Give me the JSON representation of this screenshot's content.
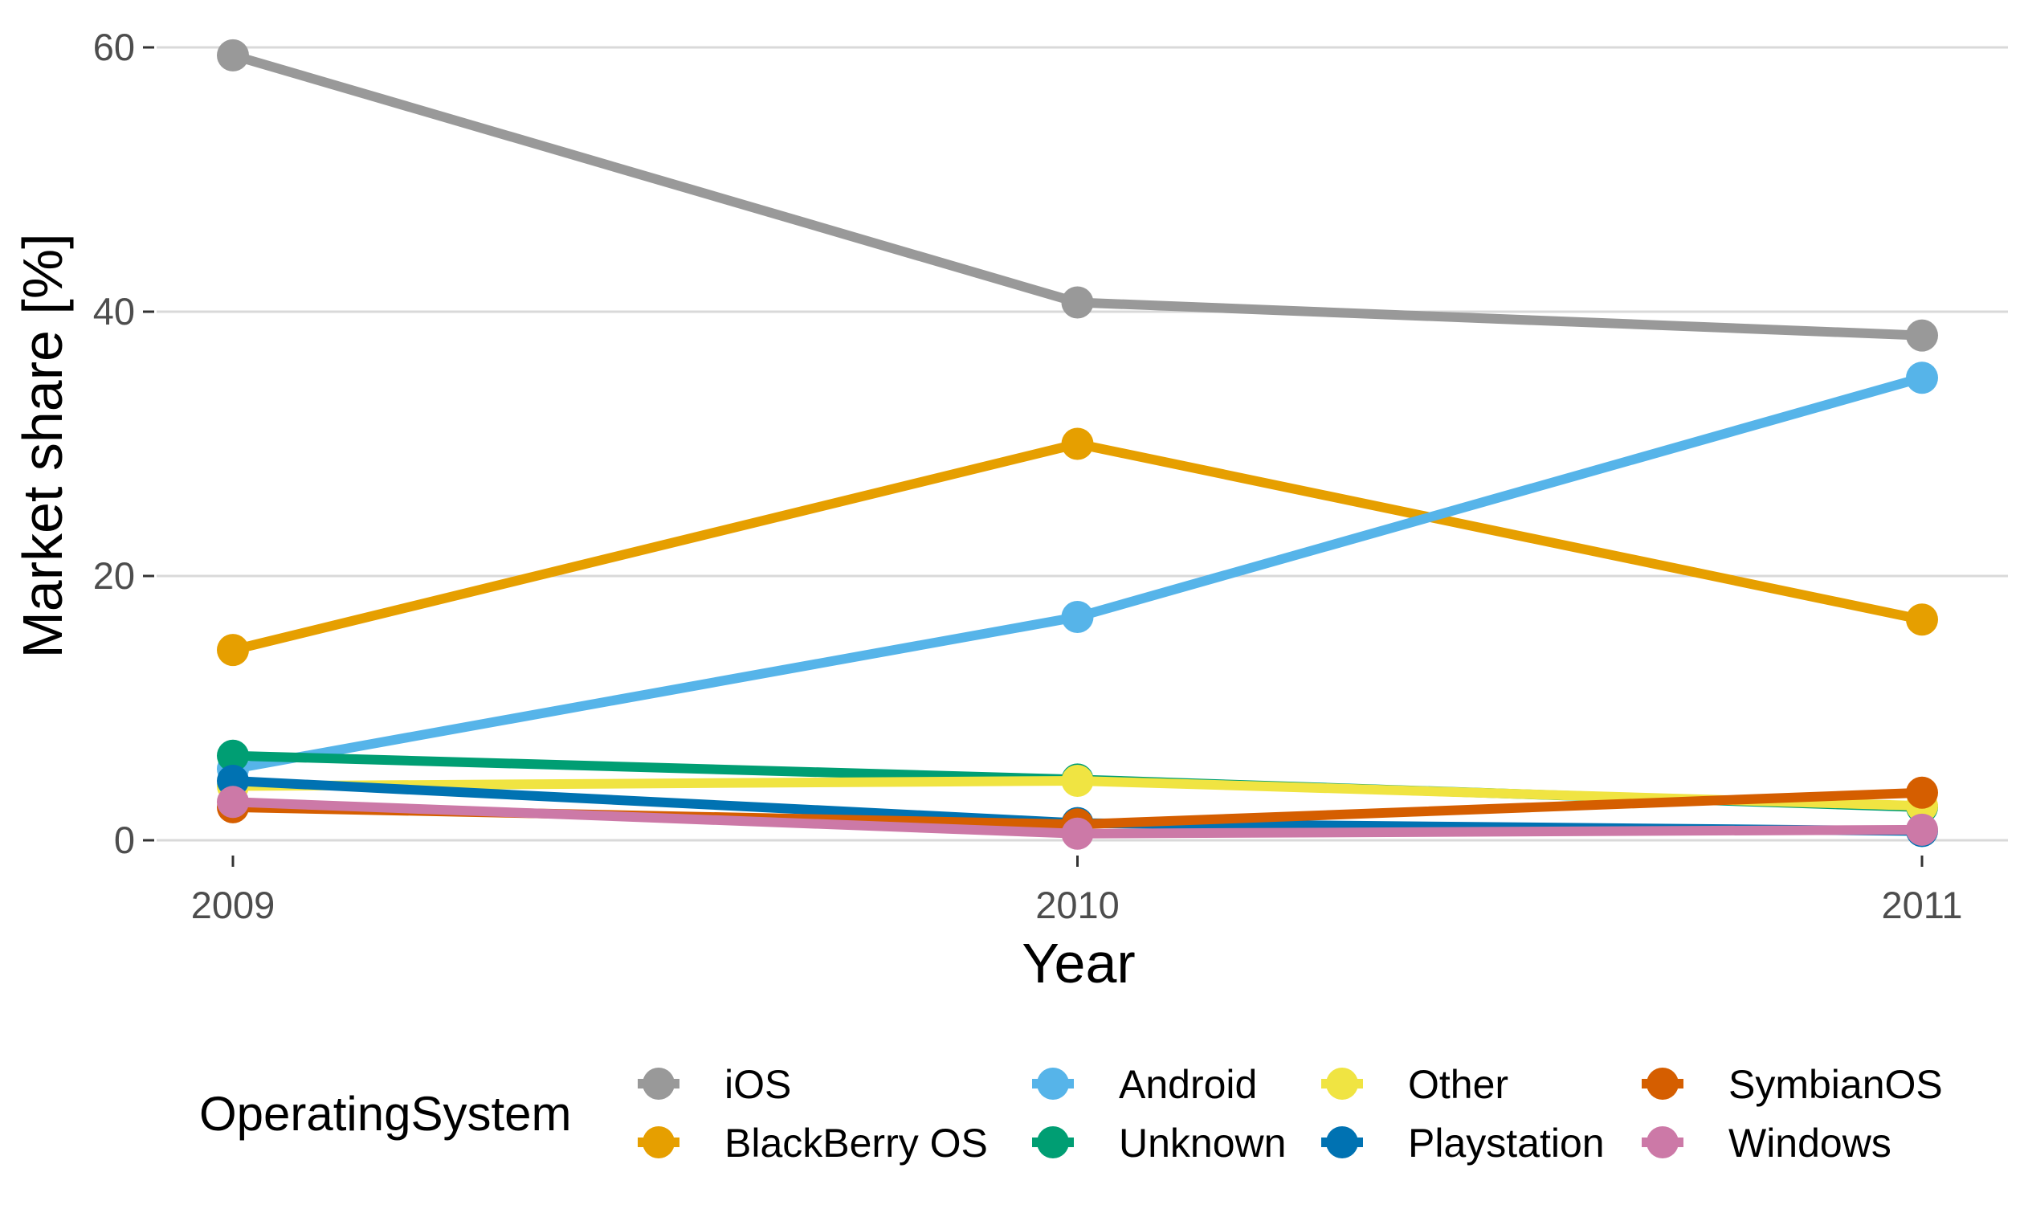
{
  "chart_data": {
    "type": "line",
    "title": "",
    "xlabel": "Year",
    "ylabel": "Market share [%]",
    "x": [
      2009,
      2010,
      2011
    ],
    "x_tick_labels": [
      "2009",
      "2010",
      "2011"
    ],
    "y_ticks": [
      0,
      20,
      40,
      60
    ],
    "y_tick_labels": [
      "0",
      "20",
      "40",
      "60"
    ],
    "ylim": [
      0,
      60
    ],
    "xlim": [
      2009,
      2011
    ],
    "grid": "horizontal",
    "legend": {
      "title": "OperatingSystem",
      "position": "bottom"
    },
    "series": [
      {
        "name": "iOS",
        "color": "#999999",
        "values": [
          59.4,
          40.7,
          38.2
        ]
      },
      {
        "name": "BlackBerry OS",
        "color": "#E69F00",
        "values": [
          14.4,
          30.0,
          16.7
        ]
      },
      {
        "name": "Android",
        "color": "#56B4E9",
        "values": [
          5.4,
          16.9,
          35.0
        ]
      },
      {
        "name": "Unknown",
        "color": "#009E73",
        "values": [
          6.4,
          4.6,
          2.5
        ]
      },
      {
        "name": "Other",
        "color": "#F0E442",
        "values": [
          4.1,
          4.5,
          2.6
        ]
      },
      {
        "name": "Playstation",
        "color": "#0072B2",
        "values": [
          4.5,
          1.3,
          0.7
        ]
      },
      {
        "name": "SymbianOS",
        "color": "#D55E00",
        "values": [
          2.5,
          1.2,
          3.6
        ]
      },
      {
        "name": "Windows",
        "color": "#CC79A7",
        "values": [
          2.9,
          0.5,
          0.8
        ]
      }
    ]
  }
}
